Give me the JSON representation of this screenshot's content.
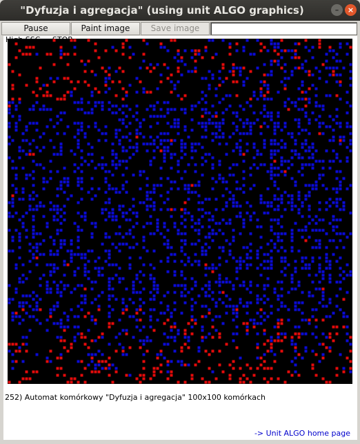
{
  "window": {
    "title": "\"Dyfuzja i agregacja\" (using unit ALGO graphics)"
  },
  "toolbar": {
    "pause_label": "Pause",
    "paint_label": "Paint image",
    "save_label": "Save image",
    "field_value": ""
  },
  "status_text": "High SSC ... STOP",
  "caption": "252)  Automat komórkowy \"Dyfuzja i agregacja\" 100x100 komórkach",
  "home_link": "-> Unit ALGO home page",
  "simulation": {
    "grid_cells": 100,
    "background_color": "#000000",
    "aggregate_color": "#0b0bd6",
    "diffusing_color": "#e50b0b"
  },
  "colors": {
    "close_button": "#e2572b",
    "link": "#0000cc"
  }
}
